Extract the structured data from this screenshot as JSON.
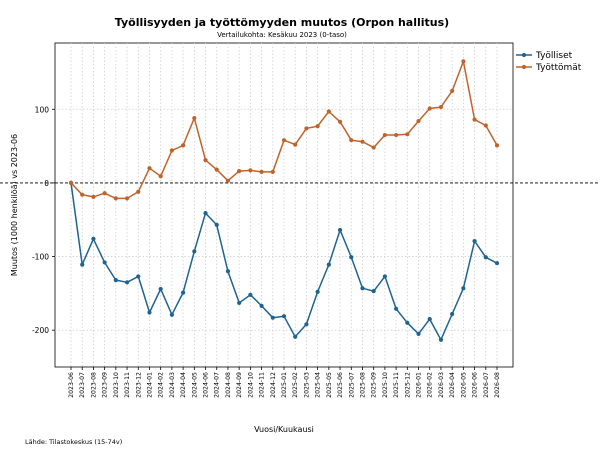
{
  "chart_data": {
    "type": "line",
    "title": "Työllisyyden ja työttömyyden muutos (Orpon hallitus)",
    "subtitle": "Vertailukohta: Kesäkuu 2023 (0-taso)",
    "xlabel": "Vuosi/Kuukausi",
    "ylabel": "Muutos (1000 henkilöä) vs 2023-06",
    "source": "Lähde: Tilastokeskus (15-74v)",
    "ylim": [
      -250,
      190
    ],
    "yticks": [
      -200,
      -100,
      0,
      100
    ],
    "grid": true,
    "legend_position": "top-right-outside",
    "categories": [
      "2023-06",
      "2023-07",
      "2023-08",
      "2023-09",
      "2023-10",
      "2023-11",
      "2023-12",
      "2024-01",
      "2024-02",
      "2024-03",
      "2024-04",
      "2024-05",
      "2024-06",
      "2024-07",
      "2024-08",
      "2024-09",
      "2024-10",
      "2024-11",
      "2024-12",
      "2025-01",
      "2025-02",
      "2025-03",
      "2025-04",
      "2025-05",
      "2025-06",
      "2025-07",
      "2025-08",
      "2025-09",
      "2025-10",
      "2025-11",
      "2025-12",
      "2026-01",
      "2026-02",
      "2026-03",
      "2026-04",
      "2026-05",
      "2026-06",
      "2026-07",
      "2026-08"
    ],
    "series": [
      {
        "name": "Työlliset",
        "color": "#1f6390",
        "values": [
          0,
          -111,
          -76,
          -108,
          -132,
          -135,
          -127,
          -176,
          -144,
          -179,
          -149,
          -93,
          -41,
          -57,
          -120,
          -163,
          -152,
          -167,
          -183,
          -181,
          -209,
          -192,
          -148,
          -111,
          -64,
          -101,
          -143,
          -147,
          -127,
          -171,
          -190,
          -205,
          -185,
          -213,
          -178,
          -143,
          -79,
          -101,
          -109
        ]
      },
      {
        "name": "Työttömät",
        "color": "#c0632a",
        "values": [
          0,
          -16,
          -19,
          -14,
          -21,
          -21,
          -12,
          20,
          9,
          44,
          51,
          88,
          31,
          18,
          3,
          16,
          17,
          15,
          15,
          58,
          52,
          74,
          77,
          97,
          83,
          58,
          56,
          48,
          65,
          65,
          66,
          84,
          101,
          103,
          125,
          165,
          86,
          78,
          51
        ]
      }
    ]
  }
}
